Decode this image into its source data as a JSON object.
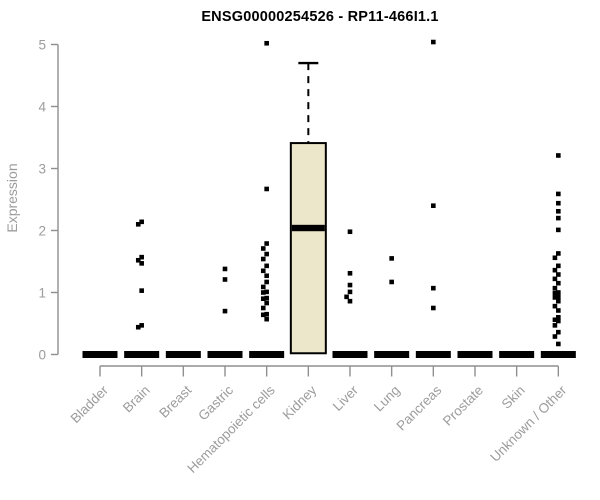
{
  "chart_data": {
    "type": "boxplot",
    "title": "ENSG00000254526 - RP11-466I1.1",
    "ylabel": "Expression",
    "xlabel": "",
    "ylim": [
      0,
      5
    ],
    "yticks": [
      0,
      1,
      2,
      3,
      4,
      5
    ],
    "grid": false,
    "legend": false,
    "categories": [
      "Bladder",
      "Brain",
      "Breast",
      "Gastric",
      "Hematopoietic cells",
      "Kidney",
      "Liver",
      "Lung",
      "Pancreas",
      "Prostate",
      "Skin",
      "Unknown / Other"
    ],
    "boxes": [
      {
        "category": "Bladder",
        "q1": 0,
        "median": 0,
        "q3": 0,
        "whisker_low": 0,
        "whisker_high": 0,
        "outliers": []
      },
      {
        "category": "Brain",
        "q1": 0,
        "median": 0,
        "q3": 0,
        "whisker_low": 0,
        "whisker_high": 0,
        "outliers": [
          2.14,
          2.1,
          1.57,
          1.52,
          1.47,
          1.03,
          0.47,
          0.44
        ]
      },
      {
        "category": "Breast",
        "q1": 0,
        "median": 0,
        "q3": 0,
        "whisker_low": 0,
        "whisker_high": 0,
        "outliers": []
      },
      {
        "category": "Gastric",
        "q1": 0,
        "median": 0,
        "q3": 0,
        "whisker_low": 0,
        "whisker_high": 0,
        "outliers": [
          1.38,
          1.21,
          0.7
        ]
      },
      {
        "category": "Hematopoietic cells",
        "q1": 0,
        "median": 0,
        "q3": 0,
        "whisker_low": 0,
        "whisker_high": 0,
        "outliers": [
          5.02,
          2.67,
          1.79,
          1.71,
          1.62,
          1.54,
          1.43,
          1.35,
          1.27,
          1.17,
          1.09,
          1.01,
          1.0,
          0.91,
          0.9,
          0.83,
          0.75,
          0.65,
          0.64,
          0.57
        ]
      },
      {
        "category": "Kidney",
        "q1": 0.02,
        "median": 2.04,
        "q3": 3.41,
        "whisker_low": 0.02,
        "whisker_high": 4.7,
        "outliers": []
      },
      {
        "category": "Liver",
        "q1": 0,
        "median": 0,
        "q3": 0,
        "whisker_low": 0,
        "whisker_high": 0,
        "outliers": [
          1.98,
          1.31,
          1.12,
          1.01,
          0.93,
          0.86
        ]
      },
      {
        "category": "Lung",
        "q1": 0,
        "median": 0,
        "q3": 0,
        "whisker_low": 0,
        "whisker_high": 0,
        "outliers": [
          1.55,
          1.17
        ]
      },
      {
        "category": "Pancreas",
        "q1": 0,
        "median": 0,
        "q3": 0,
        "whisker_low": 0,
        "whisker_high": 0,
        "outliers": [
          5.04,
          2.4,
          1.07,
          0.75
        ]
      },
      {
        "category": "Prostate",
        "q1": 0,
        "median": 0,
        "q3": 0,
        "whisker_low": 0,
        "whisker_high": 0,
        "outliers": []
      },
      {
        "category": "Skin",
        "q1": 0,
        "median": 0,
        "q3": 0,
        "whisker_low": 0,
        "whisker_high": 0,
        "outliers": []
      },
      {
        "category": "Unknown / Other",
        "q1": 0,
        "median": 0,
        "q3": 0,
        "whisker_low": 0,
        "whisker_high": 0,
        "outliers": [
          3.21,
          2.59,
          2.44,
          2.31,
          2.2,
          2.01,
          1.63,
          1.56,
          1.43,
          1.36,
          1.29,
          1.22,
          1.15,
          1.07,
          1.0,
          0.99,
          0.93,
          0.92,
          0.86,
          0.78,
          0.71,
          0.6,
          0.56,
          0.54,
          0.47,
          0.36,
          0.29,
          0.17
        ]
      }
    ],
    "styles": {
      "box_fill": "#ece7ca",
      "box_border": "#000000",
      "median_color": "#000000",
      "point_color": "#000000",
      "axis_line_color": "#8f8f8f",
      "axis_text_color": "#9c9c9c",
      "title_color": "#000000",
      "background": "#ffffff"
    }
  }
}
